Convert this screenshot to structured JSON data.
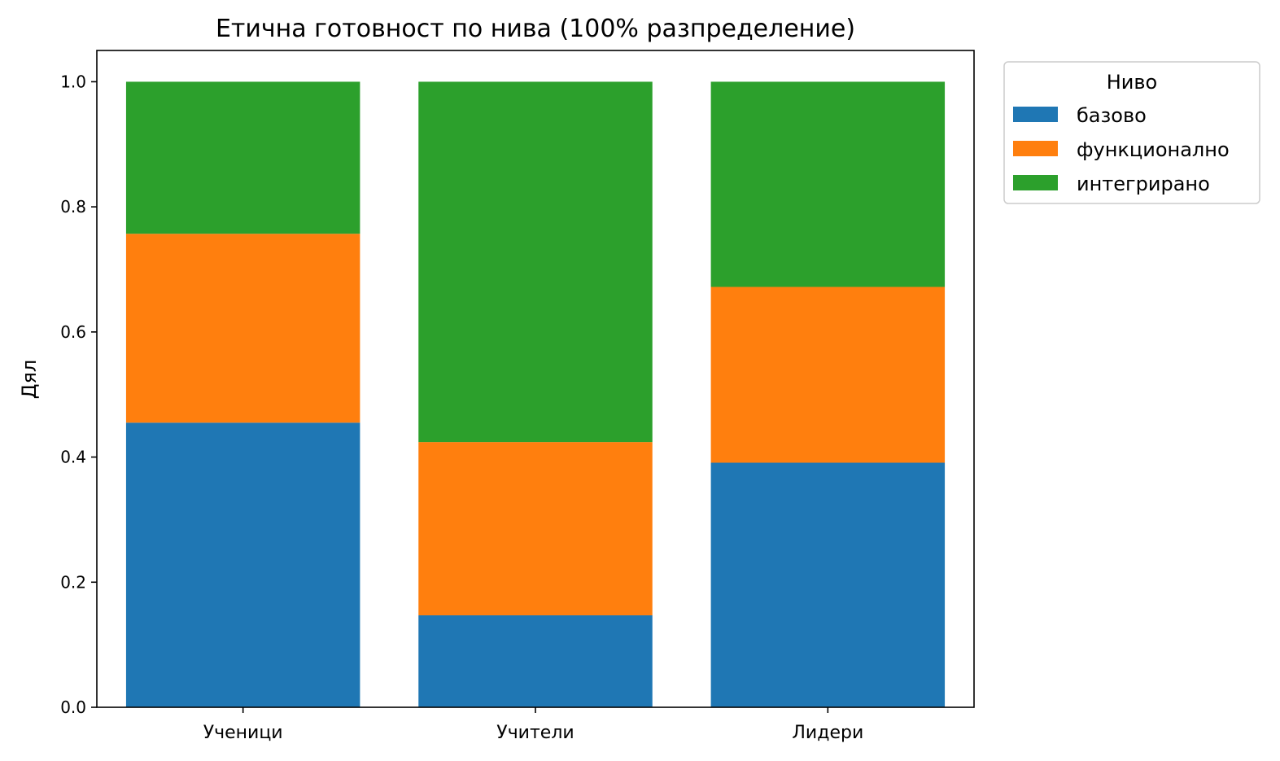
{
  "chart_data": {
    "type": "bar",
    "stacked": true,
    "title": "Етична готовност по нива (100% разпределение)",
    "xlabel": "",
    "ylabel": "Дял",
    "categories": [
      "Ученици",
      "Учители",
      "Лидери"
    ],
    "series": [
      {
        "name": "базово",
        "color": "#1f77b4",
        "values": [
          0.455,
          0.147,
          0.391
        ]
      },
      {
        "name": "функционално",
        "color": "#ff7f0e",
        "values": [
          0.302,
          0.277,
          0.281
        ]
      },
      {
        "name": "интегрирано",
        "color": "#2ca02c",
        "values": [
          0.243,
          0.576,
          0.328
        ]
      }
    ],
    "ylim": [
      0,
      1.05
    ],
    "yticks": [
      0.0,
      0.2,
      0.4,
      0.6,
      0.8,
      1.0
    ],
    "ytick_labels": [
      "0.0",
      "0.2",
      "0.4",
      "0.6",
      "0.8",
      "1.0"
    ],
    "grid": false,
    "legend": {
      "title": "Ниво",
      "placement": "outside-top-right"
    }
  }
}
